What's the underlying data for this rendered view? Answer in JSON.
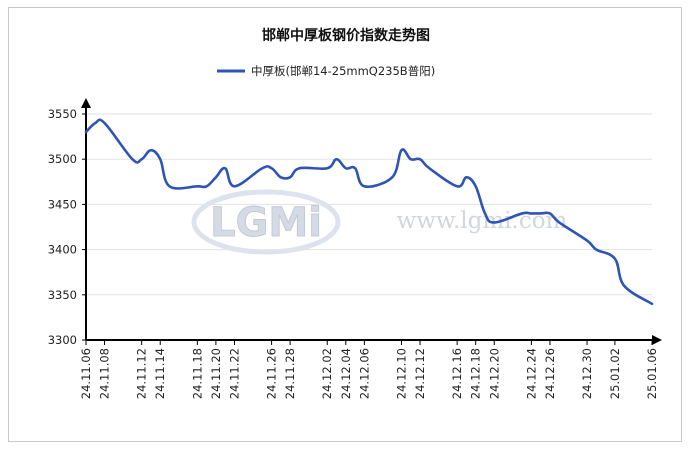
{
  "colors": {
    "series": "#2e55b6",
    "grid": "#e3e3e3",
    "axis": "#000000",
    "frame": "#c9c9c9",
    "watermark": "#cfd3da"
  },
  "watermark": {
    "logo_text": "LGMi",
    "site_text": "www.lgmi.com"
  },
  "chart_data": {
    "type": "line",
    "title": "邯郸中厚板钢价指数走势图",
    "xlabel": "",
    "ylabel": "",
    "ylim": [
      3300,
      3550
    ],
    "y_ticks": [
      3300,
      3350,
      3400,
      3450,
      3500,
      3550
    ],
    "grid": true,
    "legend_position": "top-center",
    "x_tick_labels": [
      "24.11.06",
      "24.11.08",
      "24.11.12",
      "24.11.14",
      "24.11.18",
      "24.11.20",
      "24.11.22",
      "24.11.26",
      "24.11.28",
      "24.12.02",
      "24.12.04",
      "24.12.06",
      "24.12.10",
      "24.12.12",
      "24.12.16",
      "24.12.18",
      "24.12.20",
      "24.12.24",
      "24.12.26",
      "24.12.30",
      "25.01.02",
      "25.01.06"
    ],
    "series": [
      {
        "name": "中厚板(邯郸14-25mmQ235B普阳)",
        "x": [
          "24.11.06",
          "24.11.07",
          "24.11.08",
          "24.11.11",
          "24.11.12",
          "24.11.13",
          "24.11.14",
          "24.11.15",
          "24.11.18",
          "24.11.19",
          "24.11.20",
          "24.11.21",
          "24.11.22",
          "24.11.25",
          "24.11.26",
          "24.11.27",
          "24.11.28",
          "24.11.29",
          "24.12.02",
          "24.12.03",
          "24.12.04",
          "24.12.05",
          "24.12.06",
          "24.12.09",
          "24.12.10",
          "24.12.11",
          "24.12.12",
          "24.12.13",
          "24.12.16",
          "24.12.17",
          "24.12.18",
          "24.12.19",
          "24.12.20",
          "24.12.23",
          "24.12.24",
          "24.12.25",
          "24.12.26",
          "24.12.27",
          "24.12.30",
          "24.12.31",
          "25.01.02",
          "25.01.03",
          "25.01.06"
        ],
        "values": [
          3530,
          3540,
          3540,
          3500,
          3500,
          3510,
          3500,
          3470,
          3470,
          3470,
          3480,
          3490,
          3470,
          3490,
          3490,
          3480,
          3480,
          3490,
          3490,
          3500,
          3490,
          3490,
          3470,
          3480,
          3510,
          3500,
          3500,
          3490,
          3470,
          3480,
          3470,
          3440,
          3430,
          3440,
          3440,
          3440,
          3440,
          3430,
          3410,
          3400,
          3390,
          3360,
          3340
        ]
      }
    ]
  }
}
